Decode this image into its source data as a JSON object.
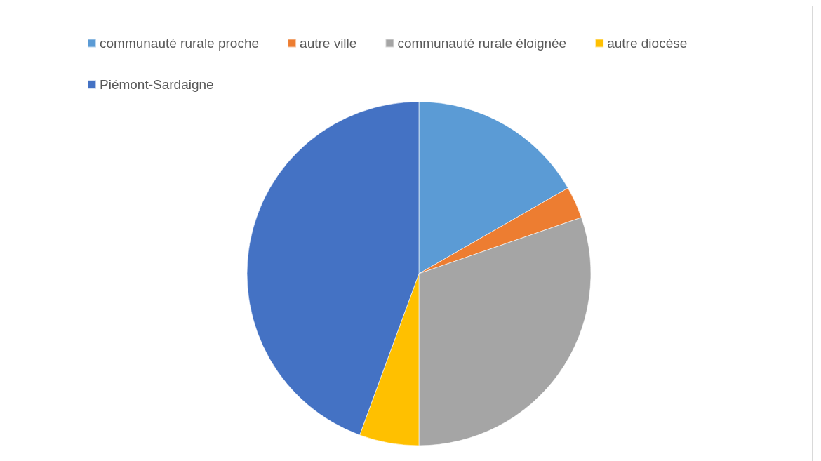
{
  "chart_data": {
    "type": "pie",
    "categories": [
      "communauté rurale proche",
      "autre ville",
      "communauté rurale éloignée",
      "autre diocèse",
      "Piémont-Sardaigne"
    ],
    "values": [
      16.7,
      3,
      30.3,
      5.6,
      44.4
    ],
    "colors": [
      "#5b9bd5",
      "#ed7d31",
      "#a5a5a5",
      "#ffc000",
      "#4472c4"
    ],
    "legend": "top"
  }
}
